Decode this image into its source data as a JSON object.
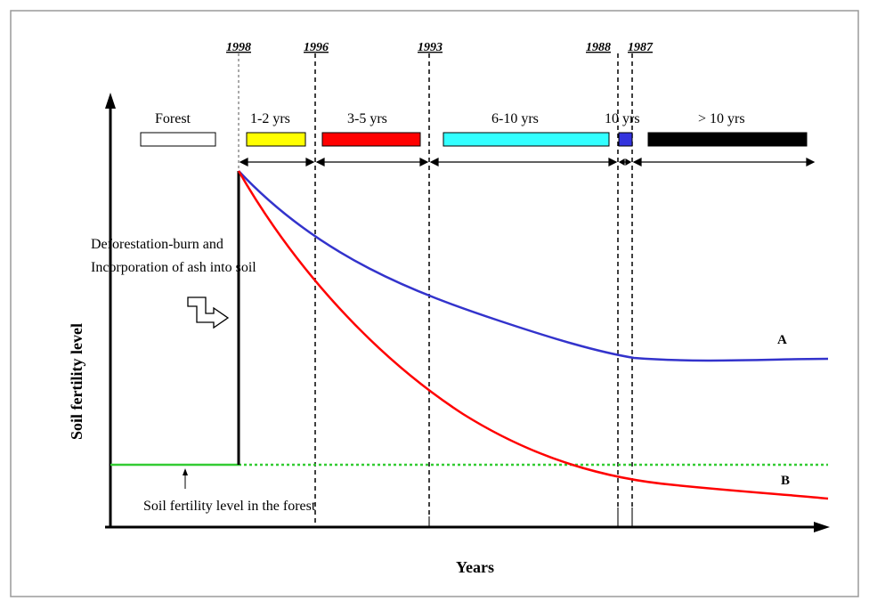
{
  "years": [
    "1998",
    "1996",
    "1993",
    "1988",
    "1987"
  ],
  "periods": [
    {
      "label": "Forest",
      "color": "#ffffff"
    },
    {
      "label": "1-2 yrs",
      "color": "#ffff00"
    },
    {
      "label": "3-5 yrs",
      "color": "#ff0000"
    },
    {
      "label": "6-10 yrs",
      "color": "#33ffff"
    },
    {
      "label": "10 yrs",
      "color": "#3333dd"
    },
    {
      "label": "> 10 yrs",
      "color": "#000000"
    }
  ],
  "annotations": {
    "burn_line1": "Deforestation-burn and",
    "burn_line2": "Incorporation of ash into soil",
    "forest_level": "Soil fertility level in the forest"
  },
  "curves": {
    "a_label": "A",
    "b_label": "B",
    "a_color": "#3333cc",
    "b_color": "#ff0000",
    "forest_color": "#33cc33"
  },
  "axes": {
    "x_label": "Years",
    "y_label": "Soil fertility level"
  }
}
